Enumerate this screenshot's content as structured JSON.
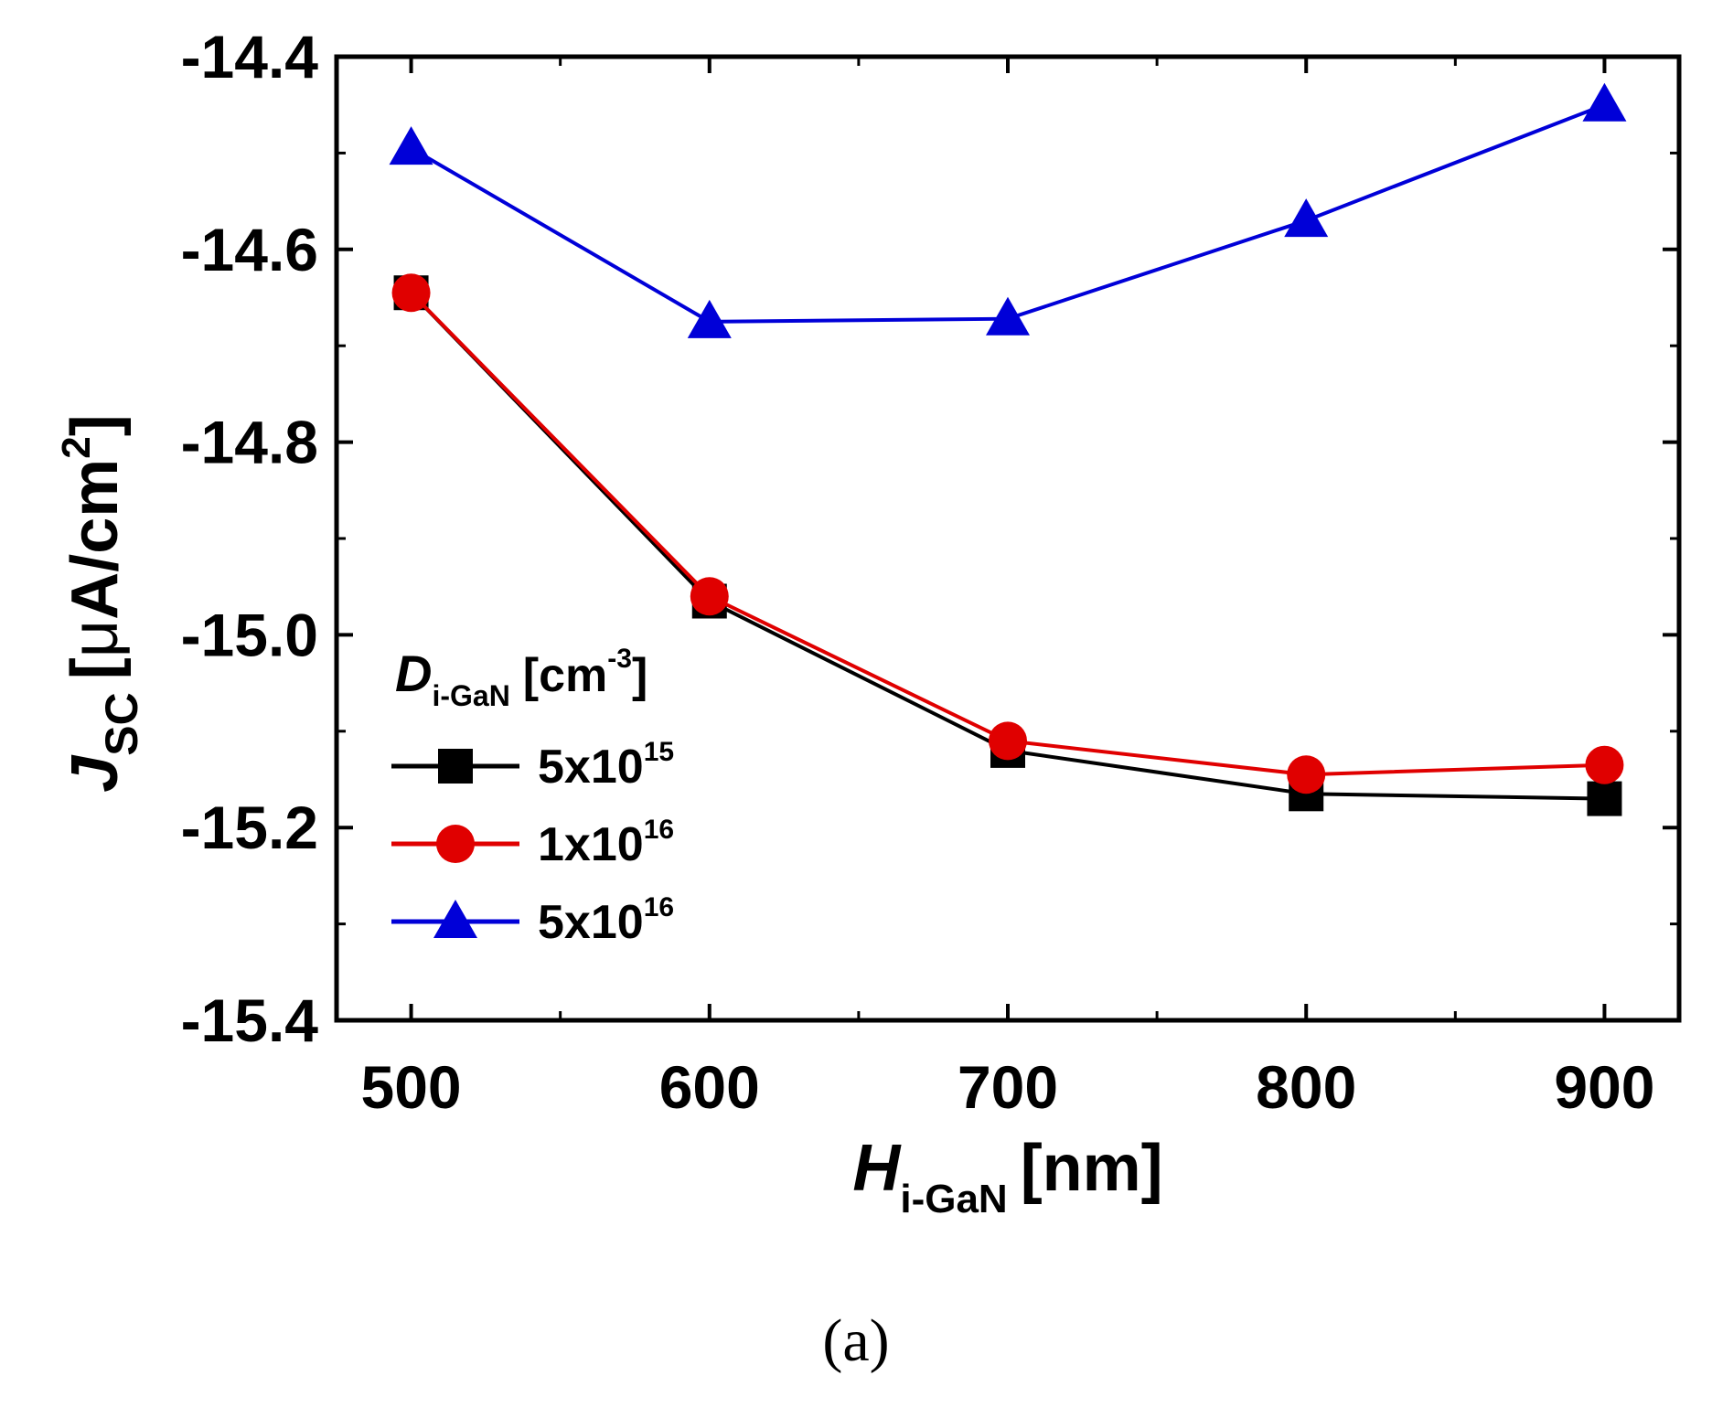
{
  "chart_data": {
    "type": "line",
    "title": "",
    "x": [
      500,
      600,
      700,
      800,
      900
    ],
    "xlim": [
      475,
      925
    ],
    "ylim": [
      -15.4,
      -14.4
    ],
    "xticks": [
      "500",
      "600",
      "700",
      "800",
      "900"
    ],
    "yticks": [
      "-14.4",
      "-14.6",
      "-14.8",
      "-15.0",
      "-15.2",
      "-15.4"
    ],
    "x_minor_step": 50,
    "y_minor_step": 0.1,
    "grid": false,
    "legend_position": "lower-left",
    "xlabel": {
      "main": "H",
      "subscript": "i-GaN",
      "unit": "[nm]"
    },
    "ylabel": {
      "main": "J",
      "subscript": "SC",
      "unit_prefix": "[",
      "mu": "μ",
      "unit_mid": "A/cm",
      "exponent": "2",
      "unit_suffix": "]"
    },
    "legend_title": {
      "main": "D",
      "subscript": "i-GaN",
      "unit_prefix": "[cm",
      "exponent": "-3",
      "unit_suffix": "]"
    },
    "series": [
      {
        "name": "5x10^15",
        "label_base": "5x10",
        "label_exp": "15",
        "color": "#000000",
        "marker": "square",
        "values": [
          -14.645,
          -14.965,
          -15.12,
          -15.165,
          -15.17
        ]
      },
      {
        "name": "1x10^16",
        "label_base": "1x10",
        "label_exp": "16",
        "color": "#e00000",
        "marker": "circle",
        "values": [
          -14.645,
          -14.96,
          -15.11,
          -15.145,
          -15.135
        ]
      },
      {
        "name": "5x10^16",
        "label_base": "5x10",
        "label_exp": "16",
        "color": "#0000d8",
        "marker": "triangle",
        "values": [
          -14.495,
          -14.675,
          -14.672,
          -14.57,
          -14.45
        ]
      }
    ]
  },
  "caption": "(a)"
}
